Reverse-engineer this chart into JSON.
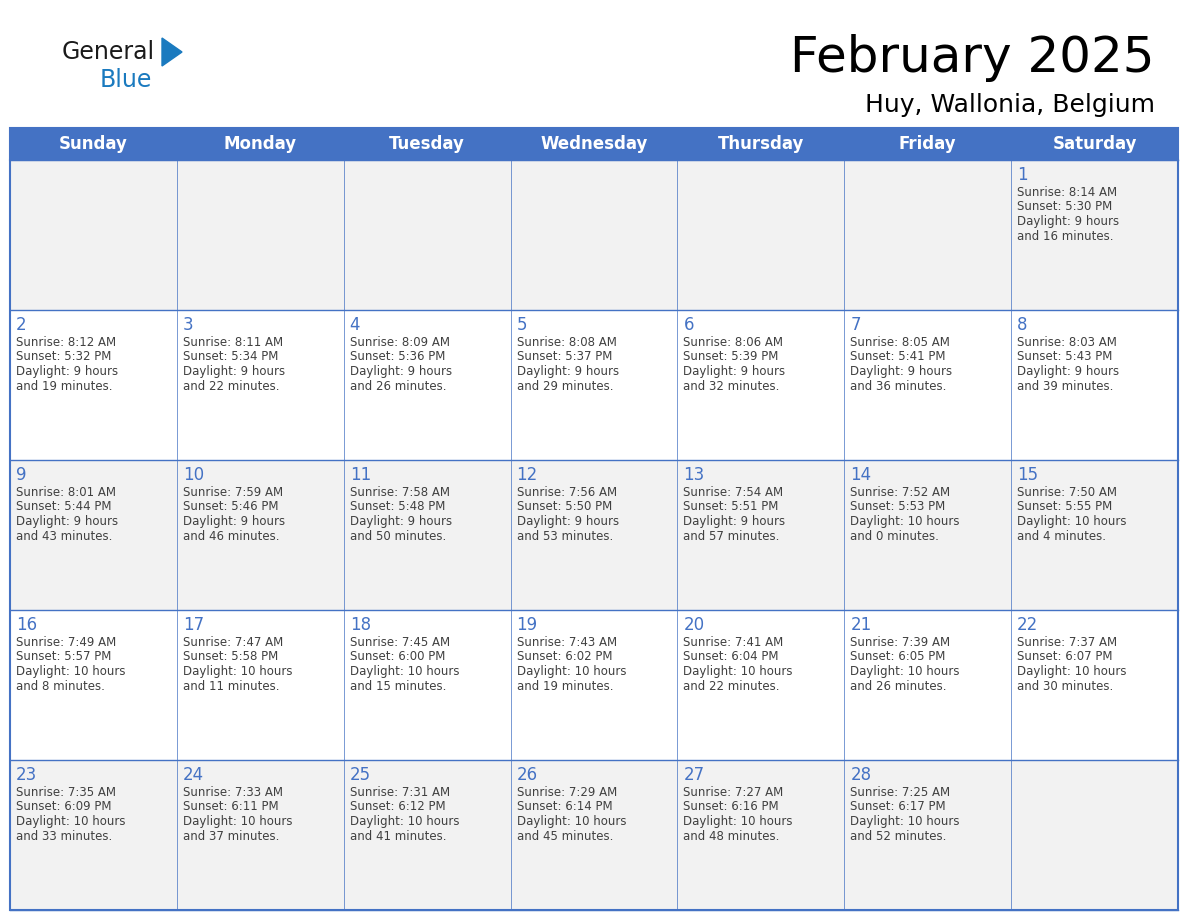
{
  "title": "February 2025",
  "subtitle": "Huy, Wallonia, Belgium",
  "days_of_week": [
    "Sunday",
    "Monday",
    "Tuesday",
    "Wednesday",
    "Thursday",
    "Friday",
    "Saturday"
  ],
  "header_bg": "#4472C4",
  "header_text": "#FFFFFF",
  "border_color": "#4472C4",
  "day_number_color": "#4472C4",
  "text_color": "#404040",
  "cell_bg_odd": "#F2F2F2",
  "cell_bg_even": "#FFFFFF",
  "calendar": [
    [
      null,
      null,
      null,
      null,
      null,
      null,
      {
        "day": 1,
        "sunrise": "8:14 AM",
        "sunset": "5:30 PM",
        "daylight": "9 hours and 16 minutes"
      }
    ],
    [
      {
        "day": 2,
        "sunrise": "8:12 AM",
        "sunset": "5:32 PM",
        "daylight": "9 hours and 19 minutes"
      },
      {
        "day": 3,
        "sunrise": "8:11 AM",
        "sunset": "5:34 PM",
        "daylight": "9 hours and 22 minutes"
      },
      {
        "day": 4,
        "sunrise": "8:09 AM",
        "sunset": "5:36 PM",
        "daylight": "9 hours and 26 minutes"
      },
      {
        "day": 5,
        "sunrise": "8:08 AM",
        "sunset": "5:37 PM",
        "daylight": "9 hours and 29 minutes"
      },
      {
        "day": 6,
        "sunrise": "8:06 AM",
        "sunset": "5:39 PM",
        "daylight": "9 hours and 32 minutes"
      },
      {
        "day": 7,
        "sunrise": "8:05 AM",
        "sunset": "5:41 PM",
        "daylight": "9 hours and 36 minutes"
      },
      {
        "day": 8,
        "sunrise": "8:03 AM",
        "sunset": "5:43 PM",
        "daylight": "9 hours and 39 minutes"
      }
    ],
    [
      {
        "day": 9,
        "sunrise": "8:01 AM",
        "sunset": "5:44 PM",
        "daylight": "9 hours and 43 minutes"
      },
      {
        "day": 10,
        "sunrise": "7:59 AM",
        "sunset": "5:46 PM",
        "daylight": "9 hours and 46 minutes"
      },
      {
        "day": 11,
        "sunrise": "7:58 AM",
        "sunset": "5:48 PM",
        "daylight": "9 hours and 50 minutes"
      },
      {
        "day": 12,
        "sunrise": "7:56 AM",
        "sunset": "5:50 PM",
        "daylight": "9 hours and 53 minutes"
      },
      {
        "day": 13,
        "sunrise": "7:54 AM",
        "sunset": "5:51 PM",
        "daylight": "9 hours and 57 minutes"
      },
      {
        "day": 14,
        "sunrise": "7:52 AM",
        "sunset": "5:53 PM",
        "daylight": "10 hours and 0 minutes"
      },
      {
        "day": 15,
        "sunrise": "7:50 AM",
        "sunset": "5:55 PM",
        "daylight": "10 hours and 4 minutes"
      }
    ],
    [
      {
        "day": 16,
        "sunrise": "7:49 AM",
        "sunset": "5:57 PM",
        "daylight": "10 hours and 8 minutes"
      },
      {
        "day": 17,
        "sunrise": "7:47 AM",
        "sunset": "5:58 PM",
        "daylight": "10 hours and 11 minutes"
      },
      {
        "day": 18,
        "sunrise": "7:45 AM",
        "sunset": "6:00 PM",
        "daylight": "10 hours and 15 minutes"
      },
      {
        "day": 19,
        "sunrise": "7:43 AM",
        "sunset": "6:02 PM",
        "daylight": "10 hours and 19 minutes"
      },
      {
        "day": 20,
        "sunrise": "7:41 AM",
        "sunset": "6:04 PM",
        "daylight": "10 hours and 22 minutes"
      },
      {
        "day": 21,
        "sunrise": "7:39 AM",
        "sunset": "6:05 PM",
        "daylight": "10 hours and 26 minutes"
      },
      {
        "day": 22,
        "sunrise": "7:37 AM",
        "sunset": "6:07 PM",
        "daylight": "10 hours and 30 minutes"
      }
    ],
    [
      {
        "day": 23,
        "sunrise": "7:35 AM",
        "sunset": "6:09 PM",
        "daylight": "10 hours and 33 minutes"
      },
      {
        "day": 24,
        "sunrise": "7:33 AM",
        "sunset": "6:11 PM",
        "daylight": "10 hours and 37 minutes"
      },
      {
        "day": 25,
        "sunrise": "7:31 AM",
        "sunset": "6:12 PM",
        "daylight": "10 hours and 41 minutes"
      },
      {
        "day": 26,
        "sunrise": "7:29 AM",
        "sunset": "6:14 PM",
        "daylight": "10 hours and 45 minutes"
      },
      {
        "day": 27,
        "sunrise": "7:27 AM",
        "sunset": "6:16 PM",
        "daylight": "10 hours and 48 minutes"
      },
      {
        "day": 28,
        "sunrise": "7:25 AM",
        "sunset": "6:17 PM",
        "daylight": "10 hours and 52 minutes"
      },
      null
    ]
  ],
  "logo_general_color": "#1a1a1a",
  "logo_blue_color": "#1a7abf",
  "logo_triangle_color": "#1a7abf",
  "title_fontsize": 36,
  "subtitle_fontsize": 18,
  "dow_fontsize": 12,
  "day_num_fontsize": 12,
  "cell_text_fontsize": 8.5
}
